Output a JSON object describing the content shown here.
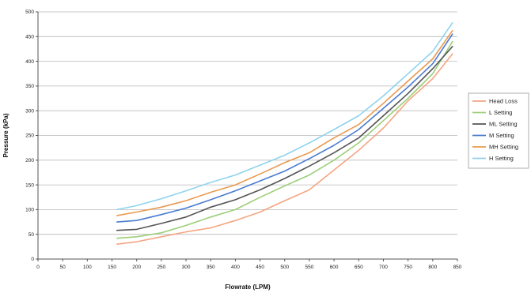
{
  "chart_data": {
    "type": "line",
    "title": "",
    "xlabel": "Flowrate (LPM)",
    "ylabel": "Pressure (kPa)",
    "xlim": [
      0,
      850
    ],
    "ylim": [
      0,
      500
    ],
    "xticks": [
      0,
      50,
      100,
      150,
      200,
      250,
      300,
      350,
      400,
      450,
      500,
      550,
      600,
      650,
      700,
      750,
      800,
      850
    ],
    "yticks": [
      0,
      50,
      100,
      150,
      200,
      250,
      300,
      350,
      400,
      450,
      500
    ],
    "grid": "horizontal",
    "legend": "right",
    "x": [
      160,
      200,
      250,
      300,
      350,
      400,
      450,
      500,
      550,
      600,
      650,
      700,
      750,
      800,
      840
    ],
    "series": [
      {
        "name": "Head Loss",
        "color": "#f4a582",
        "values": [
          30,
          35,
          45,
          55,
          63,
          78,
          95,
          118,
          140,
          180,
          220,
          265,
          320,
          365,
          415
        ]
      },
      {
        "name": "L Setting",
        "color": "#9ccf7a",
        "values": [
          42,
          45,
          53,
          68,
          85,
          100,
          125,
          148,
          170,
          200,
          235,
          280,
          325,
          375,
          440
        ]
      },
      {
        "name": "ML Setting",
        "color": "#555555",
        "values": [
          58,
          60,
          72,
          85,
          105,
          120,
          140,
          163,
          188,
          215,
          245,
          290,
          335,
          385,
          430
        ]
      },
      {
        "name": "M Setting",
        "color": "#4a7bd0",
        "values": [
          75,
          78,
          90,
          103,
          120,
          138,
          158,
          178,
          203,
          230,
          262,
          305,
          348,
          395,
          455
        ]
      },
      {
        "name": "MH Setting",
        "color": "#e89a50",
        "values": [
          88,
          95,
          105,
          118,
          135,
          150,
          172,
          195,
          215,
          245,
          272,
          315,
          360,
          405,
          462
        ]
      },
      {
        "name": "H Setting",
        "color": "#8fd3ee",
        "values": [
          100,
          108,
          122,
          138,
          155,
          170,
          190,
          210,
          235,
          262,
          290,
          330,
          375,
          420,
          478
        ]
      }
    ]
  }
}
